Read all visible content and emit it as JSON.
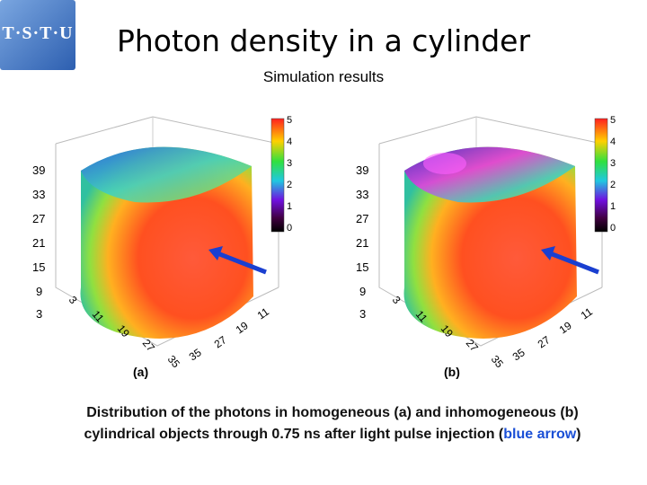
{
  "logo": {
    "text": "T·S·T·U"
  },
  "title": "Photon density in a cylinder",
  "subtitle": "Simulation results",
  "panels": [
    {
      "label": "(a)",
      "scale": [
        "5",
        "4",
        "3",
        "2",
        "1",
        "0"
      ],
      "z_ticks": [
        "39",
        "33",
        "27",
        "21",
        "15",
        "9",
        "3"
      ],
      "x_ticks": [
        "11",
        "19",
        "27",
        "35"
      ],
      "y_ticks": [
        "35",
        "27",
        "19",
        "11",
        "3"
      ]
    },
    {
      "label": "(b)",
      "scale": [
        "5",
        "4",
        "3",
        "2",
        "1",
        "0"
      ],
      "z_ticks": [
        "39",
        "33",
        "27",
        "21",
        "15",
        "9",
        "3"
      ],
      "x_ticks": [
        "11",
        "19",
        "27",
        "35"
      ],
      "y_ticks": [
        "35",
        "27",
        "19",
        "11",
        "3"
      ]
    }
  ],
  "caption": {
    "line1": "Distribution of the photons in homogeneous (a) and inhomogeneous (b)",
    "line2_pre": "cylindrical objects through 0.75 ns after light pulse injection (",
    "line2_blue": "blue arrow",
    "line2_post": ")"
  },
  "colors": {
    "arrow": "#1a3fd0",
    "caption_blue": "#1a4fd6"
  }
}
